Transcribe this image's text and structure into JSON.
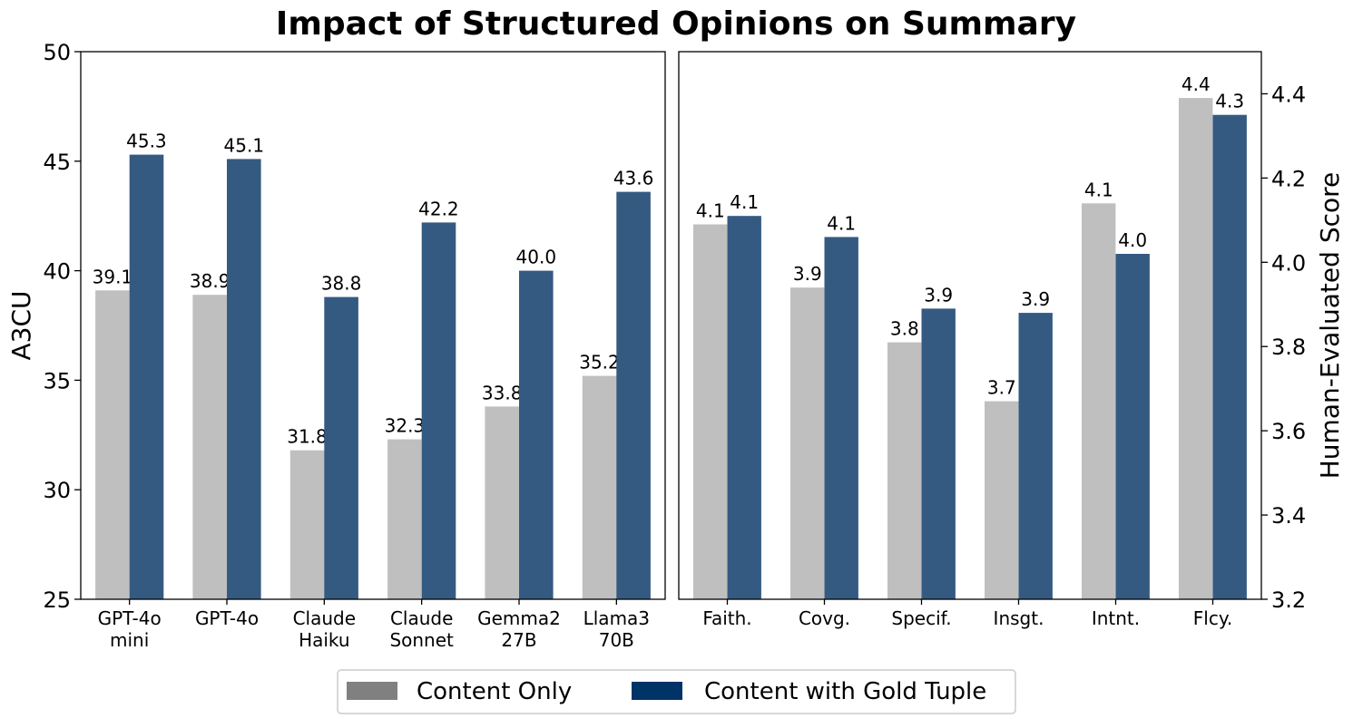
{
  "title": "Impact of Structured Opinions on Summary",
  "colors": {
    "content_only": "#bfbfbf",
    "gold_tuple": "#355a82",
    "legend_content_only": "#808080",
    "legend_gold_tuple": "#003366"
  },
  "legend": {
    "items": [
      "Content Only",
      "Content with Gold Tuple"
    ],
    "placement": "bottom-center"
  },
  "chart_data": [
    {
      "type": "bar",
      "ylabel": "A3CU",
      "ylim": [
        25,
        50
      ],
      "yticks": [
        "25",
        "30",
        "35",
        "40",
        "45",
        "50"
      ],
      "categories": [
        [
          "GPT-4o",
          "mini"
        ],
        [
          "GPT-4o"
        ],
        [
          "Claude",
          "Haiku"
        ],
        [
          "Claude",
          "Sonnet"
        ],
        [
          "Gemma2",
          "27B"
        ],
        [
          "Llama3",
          "70B"
        ]
      ],
      "series": [
        {
          "name": "Content Only",
          "values": [
            39.1,
            38.9,
            31.8,
            32.3,
            33.8,
            35.2
          ],
          "labels": [
            "39.1",
            "38.9",
            "31.8",
            "32.3",
            "33.8",
            "35.2"
          ]
        },
        {
          "name": "Content with Gold Tuple",
          "values": [
            45.3,
            45.1,
            38.8,
            42.2,
            40.0,
            43.6
          ],
          "labels": [
            "45.3",
            "45.1",
            "38.8",
            "42.2",
            "40.0",
            "43.6"
          ]
        }
      ]
    },
    {
      "type": "bar",
      "ylabel": "Human-Evaluated Score",
      "yaxis_side": "right",
      "ylim": [
        3.2,
        4.5
      ],
      "yticks": [
        "3.2",
        "3.4",
        "3.6",
        "3.8",
        "4.0",
        "4.2",
        "4.4"
      ],
      "categories": [
        [
          "Faith."
        ],
        [
          "Covg."
        ],
        [
          "Specif."
        ],
        [
          "Insgt."
        ],
        [
          "Intnt."
        ],
        [
          "Flcy."
        ]
      ],
      "series": [
        {
          "name": "Content Only",
          "values": [
            4.09,
            3.94,
            3.81,
            3.67,
            4.14,
            4.39
          ],
          "labels": [
            "4.1",
            "3.9",
            "3.8",
            "3.7",
            "4.1",
            "4.4"
          ]
        },
        {
          "name": "Content with Gold Tuple",
          "values": [
            4.11,
            4.06,
            3.89,
            3.88,
            4.02,
            4.35
          ],
          "labels": [
            "4.1",
            "4.1",
            "3.9",
            "3.9",
            "4.0",
            "4.3"
          ]
        }
      ]
    }
  ]
}
